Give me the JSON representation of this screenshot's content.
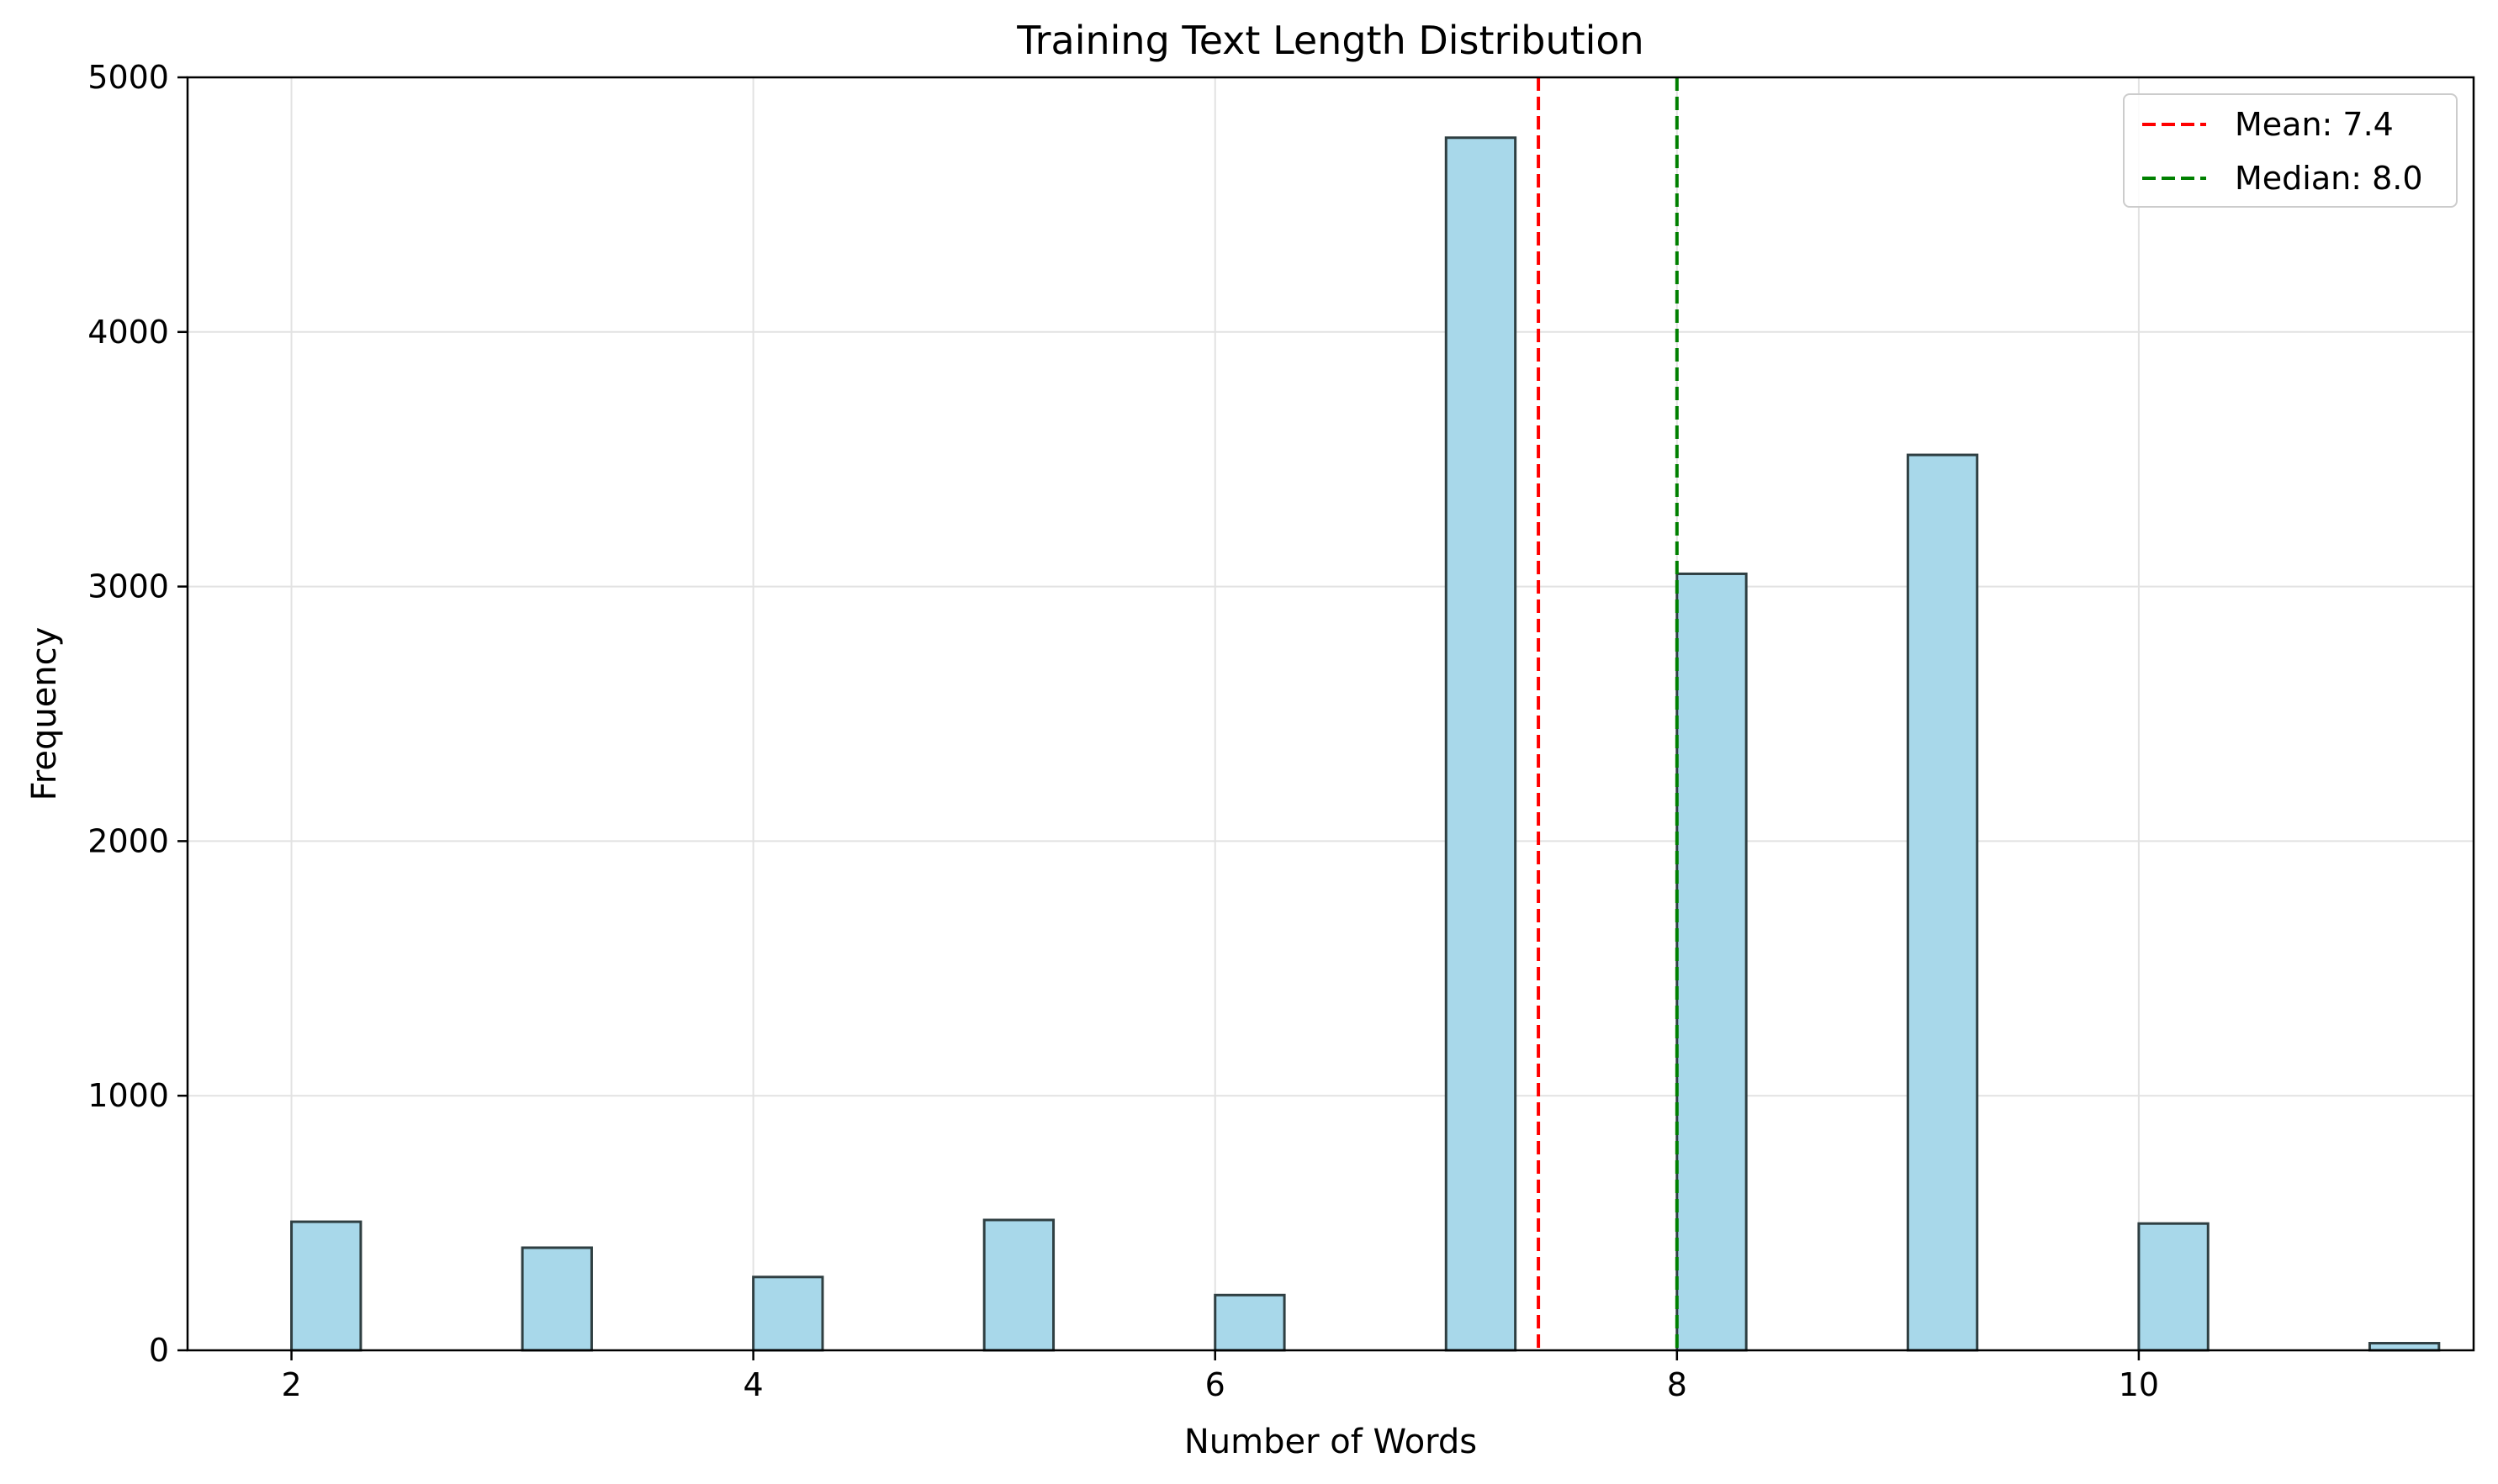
{
  "chart_data": {
    "type": "bar",
    "title": "Training Text Length Distribution",
    "xlabel": "Number of Words",
    "ylabel": "Frequency",
    "xlim": [
      1.55,
      11.45
    ],
    "ylim": [
      0,
      5000
    ],
    "xticks": [
      2,
      4,
      6,
      8,
      10
    ],
    "xtick_labels": [
      "2",
      "4",
      "6",
      "8",
      "10"
    ],
    "yticks": [
      0,
      1000,
      2000,
      3000,
      4000,
      5000
    ],
    "ytick_labels": [
      "0",
      "1000",
      "2000",
      "3000",
      "4000",
      "5000"
    ],
    "grid": true,
    "bin_width": 0.3,
    "bins": [
      {
        "x": 2,
        "value": 505
      },
      {
        "x": 3,
        "value": 403
      },
      {
        "x": 4,
        "value": 288
      },
      {
        "x": 5,
        "value": 512
      },
      {
        "x": 6,
        "value": 217
      },
      {
        "x": 7,
        "value": 4763
      },
      {
        "x": 8,
        "value": 3050
      },
      {
        "x": 9,
        "value": 3517
      },
      {
        "x": 10,
        "value": 498
      },
      {
        "x": 11,
        "value": 28
      }
    ],
    "bar_color": "#a8d8ea",
    "bar_edge_color": "#2f3f42",
    "reference_lines": [
      {
        "name": "Mean: 7.4",
        "x": 7.4,
        "color": "#ff0000",
        "style": "dashed"
      },
      {
        "name": "Median: 8.0",
        "x": 8.0,
        "color": "#008000",
        "style": "dashed"
      }
    ],
    "legend_position": "top-right"
  }
}
